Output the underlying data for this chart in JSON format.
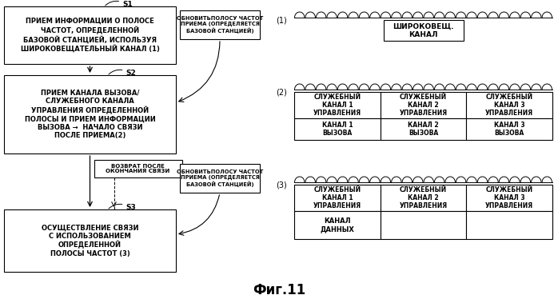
{
  "title": "Фиг.11",
  "bg_color": "#ffffff",
  "box1_text": "ПРИЕМ ИНФОРМАЦИИ О ПОЛОСЕ\nЧАСТОТ, ОПРЕДЕЛЕННОЙ\nБАЗОВОЙ СТАНЦИЕЙ, ИСПОЛЬЗУЯ\nШИРОКОВЕЩАТЕЛЬНЫЙ КАНАЛ (1)",
  "box2_text": "ПРИЕМ КАНАЛА ВЫЗОВА/\nСЛУЖЕБНОГО КАНАЛА\nУПРАВЛЕНИЯ ОПРЕДЕЛЕННОЙ\nПОЛОСЫ И ПРИЕМ ИНФОРМАЦИИ\nВЫЗОВА →  НАЧАЛО СВЯЗИ\nПОСЛЕ ПРИЕМА(2)",
  "box3_text": "ОСУЩЕСТВЛЕНИЕ СВЯЗИ\nС ИСПОЛЬЗОВАНИЕМ\nОПРЕДЕЛЕННОЙ\nПОЛОСЫ ЧАСТОТ (3)",
  "box_return_text": "ВОЗВРАТ ПОСЛЕ\nОКОНЧАНИЯ СВЯЗИ",
  "box_update1_text": "ОБНОВИТЬПОЛОСУ ЧАСТОТ\nПРИЕМА (ОПРЕДЕЛЯЕТСЯ\nБАЗОВОЙ СТАНЦИЕЙ)",
  "box_update2_text": "ОБНОВИТЬПОЛОСУ ЧАСТОТ\nПРИЕМА (ОПРЕДЕЛЯЕТСЯ\nБАЗОВОЙ СТАНЦИЕЙ)",
  "label_s1": "S1",
  "label_s2": "S2",
  "label_s3": "S3",
  "right_label1": "(1)",
  "right_label2": "(2)",
  "right_label3": "(3)",
  "broad_label": "ШИРОКОВЕЩ.\nКАНАЛ",
  "serv1_top": "СЛУЖЕБНЫЙ\nКАНАЛ 1\nУПРАВЛЕНИЯ",
  "serv2_top": "СЛУЖЕБНЫЙ\nКАНАЛ 2\nУПРАВЛЕНИЯ",
  "serv3_top": "СЛУЖЕБНЫЙ\nКАНАЛ 3\nУПРАВЛЕНИЯ",
  "call1": "КАНАЛ 1\nВЫЗОВА",
  "call2": "КАНАЛ 2\nВЫЗОВА",
  "call3": "КАНАЛ 3\nВЫЗОВА",
  "serv1b_top": "СЛУЖЕБНЫЙ\nКАНАЛ 1\nУПРАВЛЕНИЯ",
  "serv2b_top": "СЛУЖЕБНЫЙ\nКАНАЛ 2\nУПРАВЛЕНИЯ",
  "serv3b_top": "СЛУЖЕБНЫЙ\nКАНАЛ 3\nУПРАВЛЕНИЯ",
  "data_ch": "КАНАЛ\nДАННЫХ"
}
